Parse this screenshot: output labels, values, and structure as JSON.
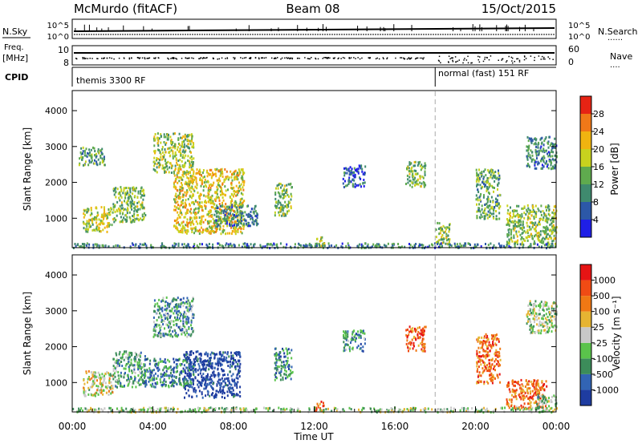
{
  "header": {
    "station": "McMurdo (fitACF)",
    "beam": "Beam 08",
    "date": "15/Oct/2015"
  },
  "top_panels": {
    "nsky_label": "N.Sky",
    "nsearch_label": "N.Search",
    "nsearch_dots": "......",
    "log_tick_top": "10^5",
    "log_tick_bottom": "10^0",
    "freq_label": "Freq.",
    "mhz_label": "[MHz]",
    "freq_tick_top": "10",
    "freq_tick_bottom": "8",
    "nave_label": "Nave",
    "nave_dots": "....",
    "nave_tick_top": "60",
    "nave_tick_bottom": "0",
    "cpid_label": "CPID",
    "cpid_mode_1": "themis 3300 RF",
    "cpid_mode_2": "normal (fast) 151 RF",
    "mode_change_hour": 18.0
  },
  "chart_data": [
    {
      "type": "heatmap",
      "name": "power",
      "ylabel": "Slant Range [km]",
      "yticks": [
        "1000",
        "2000",
        "3000",
        "4000"
      ],
      "ylim": [
        180,
        4560
      ],
      "xlim_hours": [
        0,
        24
      ],
      "colorbar_label": "Power [dB]",
      "colorbar_ticks": [
        "4",
        "8",
        "12",
        "16",
        "20",
        "24",
        "28"
      ],
      "colorbar_colors": [
        "#1f1fe6",
        "#2c58a8",
        "#3f8a6e",
        "#5faa4e",
        "#c8d21e",
        "#f0b410",
        "#f07818",
        "#e62314"
      ],
      "scatter_regions": [
        {
          "hours": [
            0.5,
            2.0
          ],
          "ranges": [
            650,
            1350
          ],
          "level": 0.55
        },
        {
          "hours": [
            0.3,
            1.6
          ],
          "ranges": [
            2500,
            3000
          ],
          "level": 0.35
        },
        {
          "hours": [
            2.0,
            3.6
          ],
          "ranges": [
            900,
            1900
          ],
          "level": 0.45
        },
        {
          "hours": [
            4.0,
            6.0
          ],
          "ranges": [
            2300,
            3400
          ],
          "level": 0.5
        },
        {
          "hours": [
            5.0,
            8.5
          ],
          "ranges": [
            600,
            2400
          ],
          "level": 0.62
        },
        {
          "hours": [
            7.0,
            9.2
          ],
          "ranges": [
            800,
            1400
          ],
          "level": 0.3
        },
        {
          "hours": [
            10.0,
            10.9
          ],
          "ranges": [
            1100,
            2000
          ],
          "level": 0.45
        },
        {
          "hours": [
            12.0,
            12.5
          ],
          "ranges": [
            230,
            500
          ],
          "level": 0.55
        },
        {
          "hours": [
            13.4,
            14.5
          ],
          "ranges": [
            1900,
            2500
          ],
          "level": 0.2
        },
        {
          "hours": [
            16.5,
            17.5
          ],
          "ranges": [
            1900,
            2600
          ],
          "level": 0.45
        },
        {
          "hours": [
            18.0,
            18.7
          ],
          "ranges": [
            300,
            900
          ],
          "level": 0.5
        },
        {
          "hours": [
            20.0,
            21.2
          ],
          "ranges": [
            1000,
            2400
          ],
          "level": 0.4
        },
        {
          "hours": [
            21.5,
            24.0
          ],
          "ranges": [
            300,
            1400
          ],
          "level": 0.5
        },
        {
          "hours": [
            22.5,
            24.0
          ],
          "ranges": [
            2400,
            3300
          ],
          "level": 0.3
        },
        {
          "hours": [
            0.0,
            24.0
          ],
          "ranges": [
            200,
            330
          ],
          "level": 0.3
        }
      ]
    },
    {
      "type": "heatmap",
      "name": "velocity",
      "ylabel": "Slant Range [km]",
      "yticks": [
        "1000",
        "2000",
        "3000",
        "4000"
      ],
      "ylim": [
        180,
        4560
      ],
      "xlim_hours": [
        0,
        24
      ],
      "xticks": [
        "00:00",
        "04:00",
        "08:00",
        "12:00",
        "16:00",
        "20:00",
        "00:00"
      ],
      "xlabel": "Time UT",
      "colorbar_label": "Velocity [m s⁻¹]",
      "colorbar_ticks": [
        "1000",
        "500",
        "100",
        "25",
        "-25",
        "-100",
        "-500",
        "-1000"
      ],
      "colorbar_colors": [
        "#1e3ca0",
        "#3264b4",
        "#3c8c5a",
        "#5ac34b",
        "#c8c8c8",
        "#e6b432",
        "#f07814",
        "#f04b14",
        "#e61414"
      ],
      "scatter_regions": [
        {
          "hours": [
            0.5,
            2.0
          ],
          "ranges": [
            650,
            1350
          ],
          "level": 0.52
        },
        {
          "hours": [
            2.0,
            3.6
          ],
          "ranges": [
            900,
            1900
          ],
          "level": 0.35
        },
        {
          "hours": [
            4.0,
            6.0
          ],
          "ranges": [
            2300,
            3400
          ],
          "level": 0.3
        },
        {
          "hours": [
            5.5,
            8.3
          ],
          "ranges": [
            600,
            1900
          ],
          "level": 0.05
        },
        {
          "hours": [
            3.5,
            6.0
          ],
          "ranges": [
            900,
            1700
          ],
          "level": 0.22
        },
        {
          "hours": [
            10.0,
            10.9
          ],
          "ranges": [
            1100,
            2000
          ],
          "level": 0.25
        },
        {
          "hours": [
            12.0,
            12.5
          ],
          "ranges": [
            230,
            500
          ],
          "level": 0.8
        },
        {
          "hours": [
            13.4,
            14.5
          ],
          "ranges": [
            1900,
            2500
          ],
          "level": 0.28
        },
        {
          "hours": [
            16.5,
            17.5
          ],
          "ranges": [
            1900,
            2600
          ],
          "level": 0.8
        },
        {
          "hours": [
            20.0,
            21.2
          ],
          "ranges": [
            1000,
            2400
          ],
          "level": 0.78
        },
        {
          "hours": [
            21.5,
            23.5
          ],
          "ranges": [
            300,
            1100
          ],
          "level": 0.75
        },
        {
          "hours": [
            23.0,
            24.0
          ],
          "ranges": [
            300,
            700
          ],
          "level": 0.38
        },
        {
          "hours": [
            22.5,
            24.0
          ],
          "ranges": [
            2400,
            3300
          ],
          "level": 0.45
        },
        {
          "hours": [
            0.0,
            24.0
          ],
          "ranges": [
            200,
            330
          ],
          "level": 0.45
        }
      ]
    }
  ]
}
